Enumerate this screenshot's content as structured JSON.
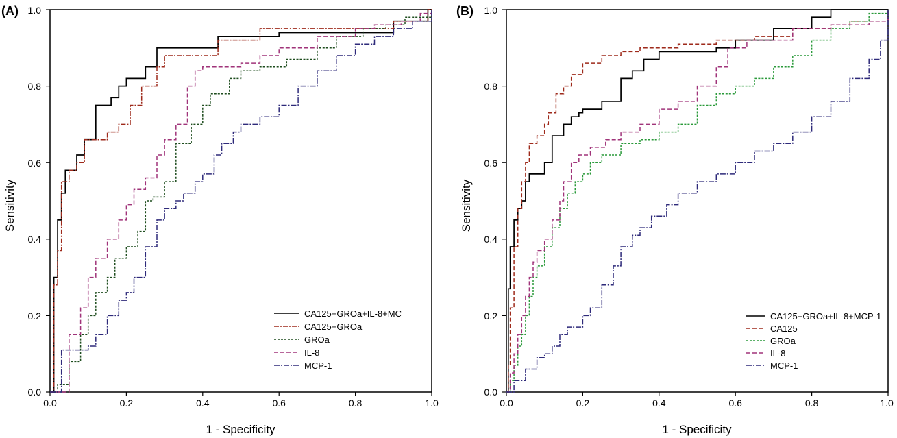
{
  "chart_data": [
    {
      "type": "line",
      "panel_label": "(A)",
      "xlabel": "1 - Specificity",
      "ylabel": "Sensitivity",
      "xlim": [
        0,
        1
      ],
      "ylim": [
        0,
        1
      ],
      "x_ticks": [
        "0.0",
        "0.2",
        "0.4",
        "0.6",
        "0.8",
        "1.0"
      ],
      "y_ticks": [
        "0.0",
        "0.2",
        "0.4",
        "0.6",
        "0.8",
        "1.0"
      ],
      "legend_position": "bottom-right",
      "grid": false,
      "series": [
        {
          "name": "CA125+GROa+IL-8+MC",
          "color": "#000000",
          "dash": "solid",
          "x": [
            0,
            0.01,
            0.02,
            0.03,
            0.04,
            0.05,
            0.07,
            0.09,
            0.12,
            0.14,
            0.16,
            0.18,
            0.2,
            0.25,
            0.28,
            0.29,
            0.42,
            0.44,
            0.6,
            0.9,
            0.99,
            1.0
          ],
          "y": [
            0,
            0.3,
            0.45,
            0.52,
            0.58,
            0.58,
            0.62,
            0.66,
            0.75,
            0.75,
            0.77,
            0.8,
            0.82,
            0.85,
            0.9,
            0.9,
            0.9,
            0.93,
            0.94,
            0.97,
            1.0,
            1.0
          ]
        },
        {
          "name": "CA125+GROa",
          "color": "#9e2a1b",
          "dash": "7,2,2,2",
          "x": [
            0,
            0.01,
            0.02,
            0.03,
            0.05,
            0.07,
            0.09,
            0.12,
            0.15,
            0.18,
            0.21,
            0.24,
            0.28,
            0.3,
            0.4,
            0.44,
            0.55,
            0.6,
            0.9,
            0.99,
            1.0
          ],
          "y": [
            0,
            0.28,
            0.37,
            0.55,
            0.58,
            0.6,
            0.66,
            0.66,
            0.68,
            0.7,
            0.75,
            0.8,
            0.85,
            0.88,
            0.88,
            0.92,
            0.95,
            0.95,
            0.97,
            1.0,
            1.0
          ]
        },
        {
          "name": "GROa",
          "color": "#1e4d1e",
          "dash": "3,2",
          "x": [
            0,
            0.02,
            0.05,
            0.08,
            0.1,
            0.12,
            0.15,
            0.17,
            0.2,
            0.23,
            0.25,
            0.27,
            0.3,
            0.33,
            0.37,
            0.4,
            0.42,
            0.47,
            0.5,
            0.55,
            0.62,
            0.7,
            0.75,
            0.82,
            0.88,
            0.93,
            0.97,
            1.0
          ],
          "y": [
            0,
            0.02,
            0.08,
            0.15,
            0.2,
            0.26,
            0.3,
            0.35,
            0.38,
            0.42,
            0.5,
            0.51,
            0.55,
            0.65,
            0.7,
            0.75,
            0.78,
            0.82,
            0.84,
            0.85,
            0.87,
            0.9,
            0.93,
            0.95,
            0.96,
            0.98,
            0.98,
            1.0
          ]
        },
        {
          "name": "IL-8",
          "color": "#a0347a",
          "dash": "6,3",
          "x": [
            0,
            0.05,
            0.08,
            0.1,
            0.12,
            0.15,
            0.18,
            0.2,
            0.22,
            0.25,
            0.28,
            0.3,
            0.33,
            0.36,
            0.38,
            0.4,
            0.43,
            0.5,
            0.55,
            0.6,
            0.7,
            0.8,
            0.85,
            0.92,
            0.97,
            1.0
          ],
          "y": [
            0,
            0.15,
            0.22,
            0.3,
            0.35,
            0.4,
            0.45,
            0.49,
            0.53,
            0.56,
            0.62,
            0.66,
            0.7,
            0.8,
            0.84,
            0.85,
            0.85,
            0.86,
            0.88,
            0.9,
            0.93,
            0.95,
            0.96,
            0.97,
            0.99,
            1.0
          ]
        },
        {
          "name": "MCP-1",
          "color": "#2e2a7a",
          "dash": "8,2,2,2",
          "x": [
            0,
            0.03,
            0.08,
            0.1,
            0.12,
            0.15,
            0.18,
            0.2,
            0.22,
            0.25,
            0.28,
            0.3,
            0.33,
            0.35,
            0.38,
            0.4,
            0.43,
            0.45,
            0.48,
            0.5,
            0.55,
            0.6,
            0.65,
            0.7,
            0.75,
            0.8,
            0.85,
            0.9,
            0.95,
            1.0
          ],
          "y": [
            0,
            0.11,
            0.11,
            0.12,
            0.15,
            0.2,
            0.24,
            0.26,
            0.3,
            0.38,
            0.45,
            0.48,
            0.5,
            0.52,
            0.55,
            0.57,
            0.62,
            0.65,
            0.68,
            0.7,
            0.72,
            0.75,
            0.8,
            0.84,
            0.88,
            0.91,
            0.93,
            0.95,
            0.97,
            1.0
          ]
        }
      ],
      "legend_labels": [
        "CA125+GROa+IL-8+MC",
        "CA125+GROa",
        "GROa",
        "IL-8",
        "MCP-1"
      ]
    },
    {
      "type": "line",
      "panel_label": "(B)",
      "xlabel": "1 - Specificity",
      "ylabel": "Sensitivity",
      "xlim": [
        0,
        1
      ],
      "ylim": [
        0,
        1
      ],
      "x_ticks": [
        "0.0",
        "0.2",
        "0.4",
        "0.6",
        "0.8",
        "1.0"
      ],
      "y_ticks": [
        "0.0",
        "0.2",
        "0.4",
        "0.6",
        "0.8",
        "1.0"
      ],
      "legend_position": "bottom-right",
      "grid": false,
      "series": [
        {
          "name": "CA125+GROa+IL-8+MCP-1",
          "color": "#000000",
          "dash": "solid",
          "x": [
            0,
            0.005,
            0.01,
            0.02,
            0.03,
            0.04,
            0.05,
            0.06,
            0.08,
            0.1,
            0.12,
            0.13,
            0.15,
            0.17,
            0.19,
            0.2,
            0.25,
            0.3,
            0.33,
            0.36,
            0.4,
            0.5,
            0.55,
            0.6,
            0.7,
            0.8,
            0.85,
            1.0
          ],
          "y": [
            0,
            0.27,
            0.38,
            0.45,
            0.48,
            0.5,
            0.55,
            0.57,
            0.57,
            0.6,
            0.67,
            0.67,
            0.7,
            0.72,
            0.73,
            0.74,
            0.76,
            0.82,
            0.84,
            0.87,
            0.89,
            0.89,
            0.9,
            0.92,
            0.95,
            0.98,
            1.0,
            1.0
          ]
        },
        {
          "name": "CA125",
          "color": "#9e2a1b",
          "dash": "6,3",
          "x": [
            0,
            0.005,
            0.01,
            0.02,
            0.03,
            0.04,
            0.05,
            0.06,
            0.08,
            0.1,
            0.11,
            0.13,
            0.15,
            0.17,
            0.2,
            0.25,
            0.3,
            0.35,
            0.45,
            0.55,
            0.65,
            0.75,
            0.85,
            0.9,
            1.0
          ],
          "y": [
            0,
            0.07,
            0.22,
            0.38,
            0.48,
            0.55,
            0.6,
            0.65,
            0.67,
            0.7,
            0.73,
            0.78,
            0.8,
            0.83,
            0.86,
            0.88,
            0.89,
            0.9,
            0.91,
            0.92,
            0.93,
            0.95,
            0.96,
            0.97,
            1.0
          ]
        },
        {
          "name": "GROa",
          "color": "#2a9a3a",
          "dash": "3,2",
          "x": [
            0,
            0.01,
            0.02,
            0.03,
            0.04,
            0.05,
            0.06,
            0.07,
            0.08,
            0.1,
            0.12,
            0.14,
            0.16,
            0.18,
            0.2,
            0.22,
            0.25,
            0.3,
            0.35,
            0.4,
            0.45,
            0.5,
            0.55,
            0.6,
            0.65,
            0.7,
            0.75,
            0.8,
            0.85,
            0.9,
            0.95,
            1.0
          ],
          "y": [
            0,
            0.03,
            0.07,
            0.12,
            0.15,
            0.2,
            0.25,
            0.3,
            0.33,
            0.38,
            0.43,
            0.48,
            0.52,
            0.55,
            0.57,
            0.6,
            0.62,
            0.65,
            0.66,
            0.68,
            0.7,
            0.75,
            0.78,
            0.8,
            0.82,
            0.85,
            0.88,
            0.92,
            0.95,
            0.97,
            0.99,
            1.0
          ]
        },
        {
          "name": "IL-8",
          "color": "#a0347a",
          "dash": "6,3",
          "x": [
            0,
            0.01,
            0.02,
            0.03,
            0.04,
            0.05,
            0.06,
            0.07,
            0.08,
            0.1,
            0.12,
            0.14,
            0.15,
            0.17,
            0.19,
            0.22,
            0.26,
            0.3,
            0.35,
            0.4,
            0.45,
            0.5,
            0.55,
            0.58,
            0.63,
            0.75,
            0.85,
            0.95,
            1.0
          ],
          "y": [
            0,
            0.05,
            0.1,
            0.15,
            0.2,
            0.25,
            0.3,
            0.34,
            0.37,
            0.4,
            0.45,
            0.5,
            0.55,
            0.6,
            0.62,
            0.64,
            0.66,
            0.68,
            0.7,
            0.74,
            0.76,
            0.8,
            0.85,
            0.9,
            0.92,
            0.95,
            0.96,
            0.97,
            1.0
          ]
        },
        {
          "name": "MCP-1",
          "color": "#2e2a7a",
          "dash": "8,2,2,2",
          "x": [
            0,
            0.02,
            0.05,
            0.08,
            0.1,
            0.12,
            0.14,
            0.16,
            0.18,
            0.2,
            0.22,
            0.25,
            0.28,
            0.3,
            0.33,
            0.35,
            0.38,
            0.42,
            0.45,
            0.5,
            0.55,
            0.6,
            0.65,
            0.7,
            0.75,
            0.8,
            0.85,
            0.9,
            0.95,
            0.98,
            1.0
          ],
          "y": [
            0,
            0.03,
            0.06,
            0.09,
            0.1,
            0.12,
            0.15,
            0.17,
            0.17,
            0.2,
            0.22,
            0.28,
            0.33,
            0.38,
            0.41,
            0.43,
            0.46,
            0.49,
            0.52,
            0.55,
            0.57,
            0.6,
            0.63,
            0.65,
            0.68,
            0.72,
            0.76,
            0.82,
            0.87,
            0.92,
            1.0
          ]
        }
      ],
      "legend_labels": [
        "CA125+GROa+IL-8+MCP-1",
        "CA125",
        "GROa",
        "IL-8",
        "MCP-1"
      ]
    }
  ]
}
